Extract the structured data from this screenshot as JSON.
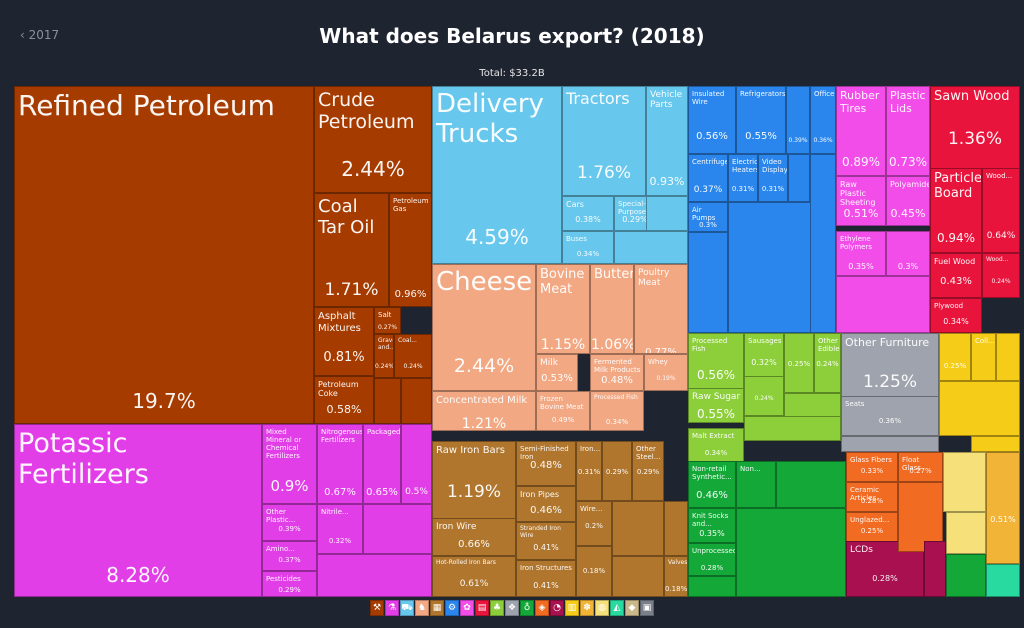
{
  "header": {
    "back_label": "‹ 2017",
    "title": "What does Belarus export? (2018)",
    "total_label": "Total: $33.2B"
  },
  "chart_data": {
    "type": "treemap",
    "title": "What does Belarus export? (2018)",
    "total": "Total: $33.2B",
    "items": [
      {
        "name": "Refined Petroleum",
        "value": "19.7%",
        "color": "#a63b00"
      },
      {
        "name": "Crude Petroleum",
        "value": "2.44%",
        "color": "#a63b00"
      },
      {
        "name": "Coal Tar Oil",
        "value": "1.71%",
        "color": "#a63b00"
      },
      {
        "name": "Petroleum Gas",
        "value": "0.96%",
        "color": "#a63b00"
      },
      {
        "name": "Asphalt Mixtures",
        "value": "0.81%",
        "color": "#a63b00"
      },
      {
        "name": "Salt",
        "value": "0.27%",
        "color": "#a63b00"
      },
      {
        "name": "Gravel and...",
        "value": "0.24%",
        "color": "#a63b00"
      },
      {
        "name": "Coal...",
        "value": "0.24%",
        "color": "#a63b00"
      },
      {
        "name": "Petroleum Coke",
        "value": "0.58%",
        "color": "#a63b00"
      },
      {
        "name": "Potassic Fertilizers",
        "value": "8.28%",
        "color": "#e23ee8"
      },
      {
        "name": "Mixed Mineral or Chemical Fertilizers",
        "value": "0.9%",
        "color": "#e23ee8"
      },
      {
        "name": "Nitrogenous Fertilizers",
        "value": "0.67%",
        "color": "#e23ee8"
      },
      {
        "name": "Packaged...",
        "value": "0.65%",
        "color": "#e23ee8"
      },
      {
        "name": "",
        "value": "0.5%",
        "color": "#e23ee8"
      },
      {
        "name": "Other Plastic...",
        "value": "0.39%",
        "color": "#e23ee8"
      },
      {
        "name": "Nitrile...",
        "value": "0.32%",
        "color": "#e23ee8"
      },
      {
        "name": "Amino...",
        "value": "0.37%",
        "color": "#e23ee8"
      },
      {
        "name": "Pesticides",
        "value": "0.29%",
        "color": "#e23ee8"
      },
      {
        "name": "Delivery Trucks",
        "value": "4.59%",
        "color": "#67c7ec"
      },
      {
        "name": "Tractors",
        "value": "1.76%",
        "color": "#67c7ec"
      },
      {
        "name": "Vehicle Parts",
        "value": "0.93%",
        "color": "#67c7ec"
      },
      {
        "name": "Cars",
        "value": "0.38%",
        "color": "#67c7ec"
      },
      {
        "name": "Special-Purpose...",
        "value": "0.29%",
        "color": "#67c7ec"
      },
      {
        "name": "Buses",
        "value": "0.34%",
        "color": "#67c7ec"
      },
      {
        "name": "Cheese",
        "value": "2.44%",
        "color": "#f2a883"
      },
      {
        "name": "Bovine Meat",
        "value": "1.15%",
        "color": "#f2a883"
      },
      {
        "name": "Butter",
        "value": "1.06%",
        "color": "#f2a883"
      },
      {
        "name": "Poultry Meat",
        "value": "0.77%",
        "color": "#f2a883"
      },
      {
        "name": "Milk",
        "value": "0.53%",
        "color": "#f2a883"
      },
      {
        "name": "Fermented Milk Products",
        "value": "0.48%",
        "color": "#f2a883"
      },
      {
        "name": "Whey",
        "value": "0.19%",
        "color": "#f2a883"
      },
      {
        "name": "Concentrated Milk",
        "value": "1.21%",
        "color": "#f2a883"
      },
      {
        "name": "Frozen Bovine Meat",
        "value": "0.49%",
        "color": "#f2a883"
      },
      {
        "name": "Processed Fish",
        "value": "0.34%",
        "color": "#f2a883"
      },
      {
        "name": "Raw Iron Bars",
        "value": "1.19%",
        "color": "#b0762d"
      },
      {
        "name": "Semi-Finished Iron",
        "value": "0.48%",
        "color": "#b0762d"
      },
      {
        "name": "Iron Pipes",
        "value": "0.46%",
        "color": "#b0762d"
      },
      {
        "name": "Stranded Iron Wire",
        "value": "0.41%",
        "color": "#b0762d"
      },
      {
        "name": "Iron Structures",
        "value": "0.41%",
        "color": "#b0762d"
      },
      {
        "name": "Iron Wire",
        "value": "0.66%",
        "color": "#b0762d"
      },
      {
        "name": "Hot-Rolled Iron Bars",
        "value": "0.61%",
        "color": "#b0762d"
      },
      {
        "name": "Iron...",
        "value": "0.31%",
        "color": "#b0762d"
      },
      {
        "name": "",
        "value": "0.29%",
        "color": "#b0762d"
      },
      {
        "name": "Other Steel...",
        "value": "0.29%",
        "color": "#b0762d"
      },
      {
        "name": "Wire...",
        "value": "0.2%",
        "color": "#b0762d"
      },
      {
        "name": "",
        "value": "0.18%",
        "color": "#b0762d"
      },
      {
        "name": "Valves",
        "value": "0.18%",
        "color": "#b0762d"
      },
      {
        "name": "Insulated Wire",
        "value": "0.56%",
        "color": "#2a86ec"
      },
      {
        "name": "Refrigerators",
        "value": "0.55%",
        "color": "#2a86ec"
      },
      {
        "name": "",
        "value": "0.39%",
        "color": "#2a86ec"
      },
      {
        "name": "Office...",
        "value": "0.36%",
        "color": "#2a86ec"
      },
      {
        "name": "Centrifuges",
        "value": "0.37%",
        "color": "#2a86ec"
      },
      {
        "name": "Electric Heaters",
        "value": "0.31%",
        "color": "#2a86ec"
      },
      {
        "name": "Video Displays",
        "value": "0.31%",
        "color": "#2a86ec"
      },
      {
        "name": "Air Pumps",
        "value": "0.3%",
        "color": "#2a86ec"
      },
      {
        "name": "Rubber Tires",
        "value": "0.89%",
        "color": "#f24de9"
      },
      {
        "name": "Plastic Lids",
        "value": "0.73%",
        "color": "#f24de9"
      },
      {
        "name": "Raw Plastic Sheeting",
        "value": "0.51%",
        "color": "#f24de9"
      },
      {
        "name": "Polyamides",
        "value": "0.45%",
        "color": "#f24de9"
      },
      {
        "name": "Ethylene Polymers",
        "value": "0.35%",
        "color": "#f24de9"
      },
      {
        "name": "",
        "value": "0.3%",
        "color": "#f24de9"
      },
      {
        "name": "Sawn Wood",
        "value": "1.36%",
        "color": "#e8143c"
      },
      {
        "name": "Particle Board",
        "value": "0.94%",
        "color": "#e8143c"
      },
      {
        "name": "Wood...",
        "value": "0.64%",
        "color": "#e8143c"
      },
      {
        "name": "Fuel Wood",
        "value": "0.43%",
        "color": "#e8143c"
      },
      {
        "name": "Wood...",
        "value": "0.24%",
        "color": "#e8143c"
      },
      {
        "name": "Plywood",
        "value": "0.34%",
        "color": "#e8143c"
      },
      {
        "name": "Processed Fish",
        "value": "0.56%",
        "color": "#8ccf3a"
      },
      {
        "name": "Sausages",
        "value": "0.32%",
        "color": "#8ccf3a"
      },
      {
        "name": "",
        "value": "0.25%",
        "color": "#8ccf3a"
      },
      {
        "name": "Other Edible...",
        "value": "0.24%",
        "color": "#8ccf3a"
      },
      {
        "name": "Raw Sugar",
        "value": "0.55%",
        "color": "#8ccf3a"
      },
      {
        "name": "",
        "value": "0.24%",
        "color": "#8ccf3a"
      },
      {
        "name": "Malt Extract",
        "value": "0.34%",
        "color": "#8ccf3a"
      },
      {
        "name": "Other Furniture",
        "value": "1.25%",
        "color": "#9ea3ad"
      },
      {
        "name": "Seats",
        "value": "0.36%",
        "color": "#9ea3ad"
      },
      {
        "name": "",
        "value": "0.25%",
        "color": "#f5cd18"
      },
      {
        "name": "Coll...",
        "value": "",
        "color": "#f5cd18"
      },
      {
        "name": "Non-retail Synthetic...",
        "value": "0.46%",
        "color": "#13a838"
      },
      {
        "name": "Non...",
        "value": "",
        "color": "#13a838"
      },
      {
        "name": "Knit Socks and...",
        "value": "0.35%",
        "color": "#13a838"
      },
      {
        "name": "Unprocessed...",
        "value": "0.28%",
        "color": "#13a838"
      },
      {
        "name": "Glass Fibers",
        "value": "0.33%",
        "color": "#f26b22"
      },
      {
        "name": "Float Glass",
        "value": "0.27%",
        "color": "#f26b22"
      },
      {
        "name": "Ceramic Articles",
        "value": "0.28%",
        "color": "#f26b22"
      },
      {
        "name": "Unglazed...",
        "value": "0.25%",
        "color": "#f26b22"
      },
      {
        "name": "LCDs",
        "value": "0.28%",
        "color": "#a8104f"
      },
      {
        "name": "",
        "value": "0.51%",
        "color": "#f2b436"
      }
    ],
    "legend_colors": [
      "#a63b00",
      "#e23ee8",
      "#67c7ec",
      "#f2a883",
      "#b0762d",
      "#2a86ec",
      "#f24de9",
      "#e8143c",
      "#8ccf3a",
      "#9ea3ad",
      "#13a838",
      "#f26b22",
      "#a8104f",
      "#f5cd18",
      "#f2b436",
      "#f5e07a",
      "#28d9a0",
      "#c8b88a",
      "#7a7f8a"
    ]
  },
  "legend": {
    "items": [
      {
        "name": "mineral-products-icon",
        "glyph": "⚒"
      },
      {
        "name": "chemical-products-icon",
        "glyph": "⚗"
      },
      {
        "name": "transportation-icon",
        "glyph": "⛟"
      },
      {
        "name": "animal-products-icon",
        "glyph": "♞"
      },
      {
        "name": "metals-icon",
        "glyph": "▦"
      },
      {
        "name": "machines-icon",
        "glyph": "⚙"
      },
      {
        "name": "plastics-rubbers-icon",
        "glyph": "✿"
      },
      {
        "name": "wood-products-icon",
        "glyph": "▤"
      },
      {
        "name": "foodstuffs-icon",
        "glyph": "♣"
      },
      {
        "name": "miscellaneous-icon",
        "glyph": "❖"
      },
      {
        "name": "textiles-icon",
        "glyph": "♁"
      },
      {
        "name": "stone-glass-icon",
        "glyph": "◈"
      },
      {
        "name": "instruments-icon",
        "glyph": "◔"
      },
      {
        "name": "paper-goods-icon",
        "glyph": "▥"
      },
      {
        "name": "vegetable-products-icon",
        "glyph": "✽"
      },
      {
        "name": "animal-hides-icon",
        "glyph": "◍"
      },
      {
        "name": "footwear-headwear-icon",
        "glyph": "◭"
      },
      {
        "name": "precious-metals-icon",
        "glyph": "◆"
      },
      {
        "name": "arts-antiques-icon",
        "glyph": "▣"
      }
    ]
  }
}
